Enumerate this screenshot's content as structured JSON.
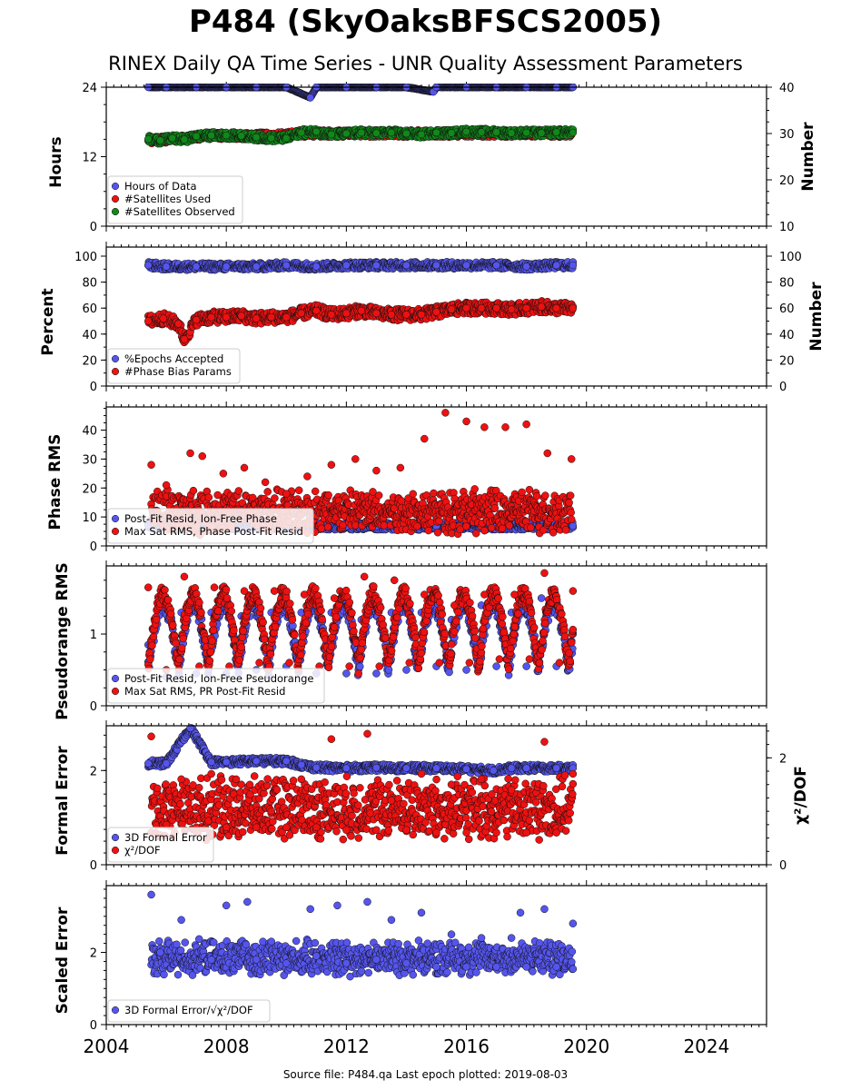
{
  "header": {
    "title": "P484 (SkyOaksBFSCS2005)",
    "subtitle": "RINEX Daily QA Time Series - UNR Quality Assessment Parameters"
  },
  "footer": {
    "source": "Source file: P484.qa Last epoch plotted: 2019-08-03"
  },
  "colors": {
    "blue": "#5555ee",
    "red": "#ee1111",
    "green": "#11881a",
    "edge": "#111111",
    "black_line": "#0a0a0a"
  },
  "chart_data": [
    {
      "type": "scatter",
      "panel": "hours",
      "ylabel": "Hours",
      "y2label": "Number",
      "xlim": [
        2004,
        2026
      ],
      "ylim": [
        0,
        24
      ],
      "y2lim": [
        10,
        40
      ],
      "yticks": [
        "0",
        "12",
        "24"
      ],
      "y2ticks": [
        "10",
        "20",
        "30",
        "40"
      ],
      "grid": false,
      "legend": "lower-left",
      "series": [
        {
          "name": "Hours of Data",
          "axis": "left",
          "color": "blue",
          "x": [
            2005.4,
            2006.0,
            2007.0,
            2008.0,
            2009.0,
            2010.0,
            2010.8,
            2011.0,
            2012.0,
            2013.0,
            2014.0,
            2014.9,
            2015.0,
            2016.0,
            2017.0,
            2018.0,
            2019.0,
            2019.55
          ],
          "y": [
            24,
            24,
            24,
            24,
            24,
            24,
            22.2,
            24,
            24,
            24,
            24,
            23.2,
            24,
            24,
            24,
            24,
            24,
            24
          ]
        },
        {
          "name": "#Satellites Used",
          "axis": "right",
          "color": "red",
          "x": [
            2005.5,
            2006.5,
            2007.5,
            2008.5,
            2009.5,
            2010.5,
            2011.5,
            2012.5,
            2013.5,
            2014.5,
            2015.5,
            2016.5,
            2017.5,
            2018.5,
            2019.5
          ],
          "y": [
            28.5,
            29,
            29.5,
            29.5,
            29.5,
            30,
            30,
            30,
            30,
            30,
            30,
            30,
            30,
            30,
            30
          ]
        },
        {
          "name": "#Satellites Observed",
          "axis": "right",
          "color": "green",
          "x": [
            2005.4,
            2005.8,
            2006.2,
            2006.6,
            2007.0,
            2007.5,
            2008.0,
            2008.5,
            2009.0,
            2009.5,
            2010.0,
            2010.5,
            2011.0,
            2011.5,
            2012.0,
            2012.5,
            2013.0,
            2013.5,
            2014.0,
            2014.5,
            2015.0,
            2015.5,
            2016.0,
            2016.5,
            2017.0,
            2017.5,
            2018.0,
            2018.5,
            2019.0,
            2019.55
          ],
          "y": [
            28.8,
            28.5,
            29,
            28.7,
            29.4,
            29.6,
            29.6,
            29.5,
            29.2,
            29.0,
            29.0,
            30.2,
            30.4,
            29.8,
            30.0,
            30.2,
            30.1,
            30.2,
            30.0,
            29.8,
            30.2,
            30.1,
            30.4,
            30.3,
            30.3,
            30.1,
            30.2,
            30.1,
            30.3,
            30.2
          ]
        }
      ]
    },
    {
      "type": "scatter",
      "panel": "percent",
      "ylabel": "Percent",
      "y2label": "Number",
      "xlim": [
        2004,
        2026
      ],
      "ylim": [
        0,
        107
      ],
      "y2lim": [
        0,
        107
      ],
      "yticks": [
        "0",
        "20",
        "40",
        "60",
        "80",
        "100"
      ],
      "y2ticks": [
        "0",
        "20",
        "40",
        "60",
        "80",
        "100"
      ],
      "grid": false,
      "legend": "lower-left",
      "series": [
        {
          "name": "%Epochs Accepted",
          "axis": "left",
          "color": "blue",
          "x": [
            2005.4,
            2006.0,
            2007.0,
            2008.0,
            2009.0,
            2010.0,
            2011.0,
            2012.0,
            2013.0,
            2014.0,
            2015.0,
            2016.0,
            2017.0,
            2018.0,
            2019.0,
            2019.55
          ],
          "y": [
            93,
            92,
            92,
            92,
            92,
            93,
            92,
            93,
            93,
            93,
            93,
            93,
            93,
            92,
            93,
            93
          ]
        },
        {
          "name": "#Phase Bias Params",
          "axis": "right",
          "color": "red",
          "x": [
            2005.4,
            2005.9,
            2006.4,
            2006.6,
            2007.0,
            2007.5,
            2008.0,
            2008.5,
            2009.0,
            2009.5,
            2010.0,
            2010.5,
            2011.0,
            2011.5,
            2012.0,
            2012.5,
            2013.0,
            2013.5,
            2014.0,
            2014.5,
            2015.0,
            2015.5,
            2016.0,
            2016.5,
            2017.0,
            2017.5,
            2018.0,
            2018.5,
            2019.0,
            2019.55
          ],
          "y": [
            50,
            52,
            48,
            36,
            51,
            53,
            53,
            54,
            52,
            53,
            53,
            56,
            58,
            55,
            56,
            58,
            56,
            55,
            55,
            55,
            57,
            59,
            60,
            60,
            60,
            59,
            60,
            61,
            60,
            60
          ]
        }
      ]
    },
    {
      "type": "scatter",
      "panel": "phase_rms",
      "ylabel": "Phase RMS",
      "xlim": [
        2004,
        2026
      ],
      "ylim": [
        0,
        48
      ],
      "yticks": [
        "0",
        "10",
        "20",
        "30",
        "40"
      ],
      "grid": false,
      "legend": "lower-left",
      "series": [
        {
          "name": "Post-Fit Resid, Ion-Free Phase",
          "color": "blue",
          "x": [
            2005.4,
            2006.0,
            2007.0,
            2008.0,
            2009.0,
            2010.0,
            2011.0,
            2012.0,
            2013.0,
            2014.0,
            2015.0,
            2016.0,
            2017.0,
            2018.0,
            2019.0,
            2019.55
          ],
          "y": [
            7,
            6.8,
            6.8,
            6.8,
            6.9,
            6.9,
            6.8,
            6.8,
            6.8,
            6.7,
            6.8,
            6.9,
            6.8,
            6.8,
            6.8,
            6.9
          ]
        },
        {
          "name": "Max Sat RMS, Phase Post-Fit Resid",
          "color": "red",
          "x": [
            2005.5,
            2006.0,
            2006.8,
            2007.2,
            2007.9,
            2008.6,
            2009.3,
            2010.0,
            2010.7,
            2011.5,
            2012.3,
            2013.0,
            2013.8,
            2014.6,
            2015.3,
            2016.0,
            2016.6,
            2017.3,
            2018.0,
            2018.7,
            2019.5
          ],
          "y": [
            28,
            21,
            32,
            31,
            25,
            27,
            22,
            18,
            24,
            28,
            30,
            26,
            27,
            37,
            46,
            43,
            41,
            41,
            42,
            32,
            30
          ]
        }
      ]
    },
    {
      "type": "scatter",
      "panel": "pseudorange_rms",
      "ylabel": "Pseudorange RMS",
      "xlim": [
        2004,
        2026
      ],
      "ylim": [
        0,
        1.95
      ],
      "yticks": [
        "0",
        "1"
      ],
      "grid": false,
      "legend": "lower-left",
      "series": [
        {
          "name": "Post-Fit Resid, Ion-Free Pseudorange",
          "color": "blue",
          "x": [
            2005.4,
            2006.0,
            2006.5,
            2007.0,
            2007.5,
            2008.0,
            2008.5,
            2009.0,
            2009.5,
            2010.0,
            2010.5,
            2011.0,
            2011.5,
            2012.0,
            2012.5,
            2013.0,
            2013.5,
            2014.0,
            2014.5,
            2015.0,
            2015.5,
            2016.0,
            2016.5,
            2017.0,
            2017.5,
            2018.0,
            2018.5,
            2019.0,
            2019.55
          ],
          "y": [
            0.85,
            0.4,
            1.3,
            0.45,
            1.3,
            0.45,
            1.25,
            0.5,
            1.3,
            0.55,
            1.3,
            0.45,
            1.3,
            0.45,
            1.2,
            0.45,
            1.3,
            0.5,
            1.3,
            0.55,
            1.2,
            0.5,
            1.4,
            0.55,
            1.3,
            0.55,
            1.5,
            0.55,
            1.0
          ]
        },
        {
          "name": "Max Sat RMS, PR Post-Fit Resid",
          "color": "red",
          "x": [
            2005.4,
            2006.0,
            2006.6,
            2007.1,
            2007.6,
            2008.1,
            2008.6,
            2009.1,
            2009.6,
            2010.1,
            2010.6,
            2011.1,
            2011.6,
            2012.1,
            2012.6,
            2013.1,
            2013.6,
            2014.1,
            2014.6,
            2015.1,
            2015.6,
            2016.1,
            2016.6,
            2017.1,
            2017.6,
            2018.1,
            2018.6,
            2019.1,
            2019.55
          ],
          "y": [
            1.65,
            0.5,
            1.8,
            0.55,
            1.65,
            0.55,
            1.6,
            0.6,
            1.6,
            0.6,
            1.55,
            0.55,
            1.5,
            0.55,
            1.8,
            0.55,
            1.75,
            0.6,
            1.55,
            0.6,
            1.4,
            0.6,
            1.55,
            0.65,
            1.55,
            0.65,
            1.85,
            0.6,
            1.6
          ]
        }
      ]
    },
    {
      "type": "scatter",
      "panel": "formal_error",
      "ylabel": "Formal Error",
      "y2label": "χ²/DOF",
      "xlim": [
        2004,
        2026
      ],
      "ylim": [
        0,
        2.95
      ],
      "y2lim": [
        0,
        2.6
      ],
      "yticks": [
        "0",
        "2"
      ],
      "y2ticks": [
        "0",
        "2"
      ],
      "grid": false,
      "legend": "lower-left",
      "series": [
        {
          "name": "3D Formal Error",
          "axis": "left",
          "color": "blue",
          "x": [
            2005.4,
            2006.0,
            2006.8,
            2007.5,
            2008.0,
            2009.0,
            2010.0,
            2010.5,
            2011.0,
            2012.0,
            2013.0,
            2014.0,
            2015.0,
            2016.0,
            2016.9,
            2017.5,
            2018.0,
            2019.0,
            2019.55
          ],
          "y": [
            2.15,
            2.15,
            2.9,
            2.18,
            2.18,
            2.2,
            2.2,
            2.12,
            2.06,
            2.05,
            2.06,
            2.05,
            2.05,
            2.03,
            2.0,
            2.05,
            2.05,
            2.05,
            2.05
          ]
        },
        {
          "name": "χ²/DOF",
          "axis": "right",
          "color": "red",
          "x": [
            2005.5,
            2006.0,
            2006.5,
            2007.0,
            2007.5,
            2008.0,
            2008.5,
            2009.0,
            2009.5,
            2010.0,
            2010.5,
            2011.0,
            2011.5,
            2012.0,
            2012.7,
            2013.0,
            2013.5,
            2014.0,
            2014.5,
            2015.0,
            2015.5,
            2016.0,
            2016.5,
            2017.0,
            2017.5,
            2018.0,
            2018.6,
            2019.0,
            2019.55
          ],
          "y": [
            2.4,
            0.75,
            1.6,
            0.7,
            1.7,
            0.7,
            1.5,
            0.7,
            1.0,
            0.7,
            1.6,
            0.7,
            2.35,
            0.65,
            2.45,
            0.65,
            1.2,
            0.65,
            1.7,
            0.6,
            1.5,
            0.6,
            1.6,
            0.6,
            1.4,
            0.6,
            2.3,
            0.6,
            1.7
          ]
        }
      ]
    },
    {
      "type": "scatter",
      "panel": "scaled_error",
      "ylabel": "Scaled Error",
      "xlim": [
        2004,
        2026
      ],
      "ylim": [
        0,
        3.85
      ],
      "yticks": [
        "0",
        "2"
      ],
      "xticks": [
        "2004",
        "2008",
        "2012",
        "2016",
        "2020",
        "2024"
      ],
      "grid": false,
      "legend": "lower-left",
      "series": [
        {
          "name": "3D Formal Error/√χ²/DOF",
          "color": "blue",
          "x": [
            2005.5,
            2005.8,
            2006.5,
            2007.5,
            2008.0,
            2008.7,
            2009.0,
            2009.5,
            2010.0,
            2010.8,
            2011.0,
            2011.7,
            2012.0,
            2012.7,
            2013.0,
            2013.5,
            2014.0,
            2014.5,
            2015.0,
            2015.5,
            2016.0,
            2016.5,
            2017.0,
            2017.5,
            2017.8,
            2018.0,
            2018.6,
            2019.0,
            2019.55
          ],
          "y": [
            3.6,
            2.0,
            2.9,
            1.8,
            3.3,
            3.4,
            1.8,
            2.3,
            1.7,
            3.2,
            1.9,
            3.3,
            1.7,
            3.4,
            1.8,
            2.9,
            1.7,
            3.1,
            1.6,
            2.5,
            1.6,
            2.4,
            1.6,
            2.4,
            3.1,
            1.6,
            3.2,
            1.6,
            2.8
          ]
        }
      ]
    }
  ]
}
